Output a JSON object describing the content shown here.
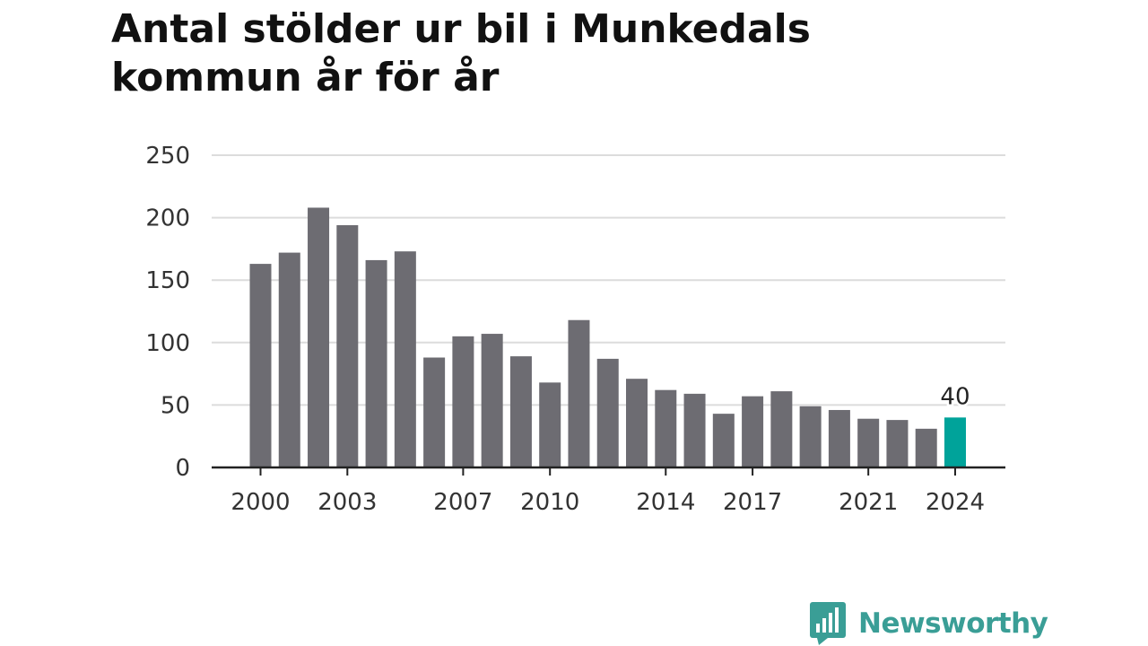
{
  "title": "Antal stölder ur bil i Munkedals kommun år för år",
  "brand": {
    "name": "Newsworthy",
    "icon": "newsworthy-logo-icon",
    "color": "#3a9e96"
  },
  "chart_data": {
    "type": "bar",
    "title": "Antal stölder ur bil i Munkedals kommun år för år",
    "xlabel": "",
    "ylabel": "",
    "categories": [
      2000,
      2001,
      2002,
      2003,
      2004,
      2005,
      2006,
      2007,
      2008,
      2009,
      2010,
      2011,
      2012,
      2013,
      2014,
      2015,
      2016,
      2017,
      2018,
      2019,
      2020,
      2021,
      2022,
      2023,
      2024
    ],
    "values": [
      163,
      172,
      208,
      194,
      166,
      173,
      88,
      105,
      107,
      89,
      68,
      118,
      87,
      71,
      62,
      59,
      43,
      57,
      61,
      49,
      46,
      39,
      38,
      31,
      40
    ],
    "x_tick_labels": [
      "2000",
      "2003",
      "2007",
      "2010",
      "2014",
      "2017",
      "2021",
      "2024"
    ],
    "y_ticks": [
      0,
      50,
      100,
      150,
      200,
      250
    ],
    "ylim": [
      0,
      250
    ],
    "grid": true,
    "highlight": {
      "category": 2024,
      "label": "40",
      "color": "#00a39a"
    },
    "bar_color": "#6d6c72"
  }
}
